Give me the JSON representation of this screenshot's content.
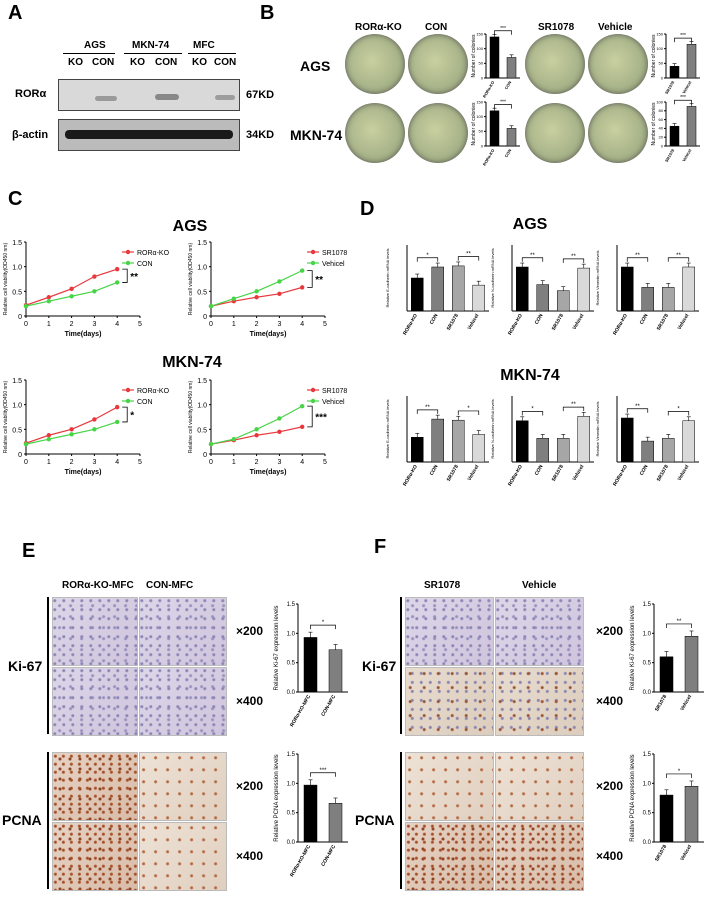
{
  "panel_letters": [
    "A",
    "B",
    "C",
    "D",
    "E",
    "F"
  ],
  "panel_a": {
    "groups": [
      "AGS",
      "MKN-74",
      "MFC"
    ],
    "lanes": [
      "KO",
      "CON",
      "KO",
      "CON",
      "KO",
      "CON"
    ],
    "rows": [
      {
        "name": "RORα",
        "size": "67KD"
      },
      {
        "name": "β-actin",
        "size": "34KD"
      }
    ]
  },
  "panel_b": {
    "col_labels_left": [
      "RORα-KO",
      "CON"
    ],
    "col_labels_right": [
      "SR1078",
      "Vehicle"
    ],
    "row_labels": [
      "AGS",
      "MKN-74"
    ],
    "ylabel": "Number of colonies",
    "sig": "***"
  },
  "panel_c": {
    "titles": [
      "AGS",
      "MKN-74"
    ],
    "xlabel": "Time(days)",
    "ylabel": "Relative cell viability(OD450 nm)",
    "y_ticks": [
      "0",
      "0.5",
      "1.0",
      "1.5"
    ],
    "x_ticks": [
      "0",
      "1",
      "2",
      "3",
      "4",
      "5"
    ]
  },
  "panel_d": {
    "titles": [
      "AGS",
      "MKN-74"
    ],
    "categories": [
      "RORα-KO",
      "CON",
      "SR1078",
      "Vehicel"
    ]
  },
  "panel_e": {
    "col_labels": [
      "RORα-KO-MFC",
      "CON-MFC"
    ],
    "row_labels": [
      "Ki-67",
      "PCNA"
    ],
    "mags": [
      "×200",
      "×400"
    ]
  },
  "panel_f": {
    "col_labels": [
      "SR1078",
      "Vehicle"
    ],
    "row_labels": [
      "Ki-67",
      "PCNA"
    ],
    "mags": [
      "×200",
      "×400"
    ]
  },
  "chart_data": [
    {
      "type": "bar",
      "panel": "B-AGS-KO",
      "categories": [
        "RORα-KO",
        "CON"
      ],
      "values": [
        140,
        70
      ],
      "ylabel": "Number of colonies",
      "ylim": [
        0,
        150
      ],
      "ticks": [
        "0",
        "50",
        "100",
        "150"
      ],
      "sig": "***"
    },
    {
      "type": "bar",
      "panel": "B-AGS-SR",
      "categories": [
        "SR1078",
        "Vehicel"
      ],
      "values": [
        40,
        115
      ],
      "ylabel": "Number of colonies",
      "ylim": [
        0,
        150
      ],
      "ticks": [
        "0",
        "50",
        "100",
        "150"
      ],
      "sig": "***"
    },
    {
      "type": "bar",
      "panel": "B-MKN-KO",
      "categories": [
        "RORα-KO",
        "CON"
      ],
      "values": [
        120,
        60
      ],
      "ylabel": "Number of colonies",
      "ylim": [
        0,
        150
      ],
      "ticks": [
        "0",
        "50",
        "100",
        "150"
      ],
      "sig": "***"
    },
    {
      "type": "bar",
      "panel": "B-MKN-SR",
      "categories": [
        "SR1078",
        "Vehicel"
      ],
      "values": [
        45,
        90
      ],
      "ylabel": "Number of colonies",
      "ylim": [
        0,
        100
      ],
      "ticks": [
        "0",
        "20",
        "40",
        "60",
        "80",
        "100"
      ],
      "sig": "***"
    },
    {
      "type": "line",
      "panel": "C-AGS-KO",
      "title": "AGS",
      "x": [
        0,
        1,
        2,
        3,
        4
      ],
      "series": [
        {
          "name": "RORα-KO",
          "values": [
            0.22,
            0.38,
            0.55,
            0.8,
            0.95
          ],
          "color": "#e8383d"
        },
        {
          "name": "CON",
          "values": [
            0.2,
            0.3,
            0.4,
            0.5,
            0.68
          ],
          "color": "#47d447"
        }
      ],
      "ylim": [
        0,
        1.5
      ],
      "xlim": [
        0,
        5
      ],
      "sig": "**"
    },
    {
      "type": "line",
      "panel": "C-AGS-SR",
      "title": "AGS",
      "x": [
        0,
        1,
        2,
        3,
        4
      ],
      "series": [
        {
          "name": "SR1078",
          "values": [
            0.2,
            0.3,
            0.38,
            0.45,
            0.58
          ],
          "color": "#e8383d"
        },
        {
          "name": "Vehicel",
          "values": [
            0.2,
            0.35,
            0.5,
            0.7,
            0.92
          ],
          "color": "#47d447"
        }
      ],
      "ylim": [
        0,
        1.5
      ],
      "xlim": [
        0,
        5
      ],
      "sig": "**"
    },
    {
      "type": "line",
      "panel": "C-MKN-KO",
      "title": "MKN-74",
      "x": [
        0,
        1,
        2,
        3,
        4
      ],
      "series": [
        {
          "name": "RORα-KO",
          "values": [
            0.22,
            0.38,
            0.5,
            0.7,
            0.95
          ],
          "color": "#e8383d"
        },
        {
          "name": "CON",
          "values": [
            0.2,
            0.3,
            0.4,
            0.5,
            0.65
          ],
          "color": "#47d447"
        }
      ],
      "ylim": [
        0,
        1.5
      ],
      "xlim": [
        0,
        5
      ],
      "sig": "*"
    },
    {
      "type": "line",
      "panel": "C-MKN-SR",
      "title": "MKN-74",
      "x": [
        0,
        1,
        2,
        3,
        4
      ],
      "series": [
        {
          "name": "SR1078",
          "values": [
            0.2,
            0.28,
            0.38,
            0.45,
            0.55
          ],
          "color": "#e8383d"
        },
        {
          "name": "Vehicel",
          "values": [
            0.2,
            0.3,
            0.5,
            0.72,
            0.97
          ],
          "color": "#47d447"
        }
      ],
      "ylim": [
        0,
        1.5
      ],
      "xlim": [
        0,
        5
      ],
      "sig": "***"
    },
    {
      "type": "bar",
      "panel": "D-AGS-E",
      "ylabel": "Relative E-cadherin mRNA levels",
      "categories": [
        "RORα-KO",
        "CON",
        "SR1078",
        "Vehicel"
      ],
      "values": [
        0.6,
        0.8,
        0.82,
        0.47
      ],
      "ylim": [
        0,
        1.2
      ],
      "sig": [
        "*",
        "**"
      ]
    },
    {
      "type": "bar",
      "panel": "D-AGS-N",
      "ylabel": "Relative N-cadherin mRNA levels",
      "categories": [
        "RORα-KO",
        "CON",
        "SR1078",
        "Vehicel"
      ],
      "values": [
        0.8,
        0.48,
        0.37,
        0.78
      ],
      "ylim": [
        0,
        1.2
      ],
      "sig": [
        "**",
        "**"
      ]
    },
    {
      "type": "bar",
      "panel": "D-AGS-V",
      "ylabel": "Relative Vimentin mRNA levels",
      "categories": [
        "RORα-KO",
        "CON",
        "SR1078",
        "Vehicel"
      ],
      "values": [
        0.8,
        0.43,
        0.43,
        0.8
      ],
      "ylim": [
        0,
        1.2
      ],
      "sig": [
        "**",
        "**"
      ]
    },
    {
      "type": "bar",
      "panel": "D-MKN-E",
      "ylabel": "Relative E-cadherin mRNA levels",
      "categories": [
        "RORα-KO",
        "CON",
        "SR1078",
        "Vehicel"
      ],
      "values": [
        0.45,
        0.78,
        0.76,
        0.5
      ],
      "ylim": [
        0,
        1.2
      ],
      "sig": [
        "**",
        "*"
      ]
    },
    {
      "type": "bar",
      "panel": "D-MKN-N",
      "ylabel": "Relative N-cadherin mRNA levels",
      "categories": [
        "RORα-KO",
        "CON",
        "SR1078",
        "Vehicel"
      ],
      "values": [
        0.75,
        0.43,
        0.43,
        0.83
      ],
      "ylim": [
        0,
        1.2
      ],
      "sig": [
        "*",
        "**"
      ]
    },
    {
      "type": "bar",
      "panel": "D-MKN-V",
      "ylabel": "Relative Vimentin mRNA levels",
      "categories": [
        "RORα-KO",
        "CON",
        "SR1078",
        "Vehicel"
      ],
      "values": [
        0.8,
        0.38,
        0.43,
        0.75
      ],
      "ylim": [
        0,
        1.2
      ],
      "sig": [
        "**",
        "*"
      ]
    },
    {
      "type": "bar",
      "panel": "E-Ki67",
      "ylabel": "Relative Ki-67 expression levels",
      "categories": [
        "RORα-KO-MFC",
        "CON-MFC"
      ],
      "values": [
        0.93,
        0.72
      ],
      "ylim": [
        0,
        1.5
      ],
      "ticks": [
        "0.0",
        "0.5",
        "1.0",
        "1.5"
      ],
      "sig": "*"
    },
    {
      "type": "bar",
      "panel": "E-PCNA",
      "ylabel": "Relative PCNA expression levels",
      "categories": [
        "RORα-KO-MFC",
        "CON-MFC"
      ],
      "values": [
        0.97,
        0.66
      ],
      "ylim": [
        0,
        1.5
      ],
      "ticks": [
        "0.0",
        "0.5",
        "1.0",
        "1.5"
      ],
      "sig": "***"
    },
    {
      "type": "bar",
      "panel": "F-Ki67",
      "ylabel": "Relative Ki-67 expression levels",
      "categories": [
        "SR1078",
        "Vehicel"
      ],
      "values": [
        0.6,
        0.95
      ],
      "ylim": [
        0,
        1.5
      ],
      "ticks": [
        "0.0",
        "0.5",
        "1.0",
        "1.5"
      ],
      "sig": "**"
    },
    {
      "type": "bar",
      "panel": "F-PCNA",
      "ylabel": "Relative PCNA expression levels",
      "categories": [
        "SR1078",
        "Vehicel"
      ],
      "values": [
        0.8,
        0.95
      ],
      "ylim": [
        0,
        1.5
      ],
      "ticks": [
        "0.0",
        "0.5",
        "1.0",
        "1.5"
      ],
      "sig": "*"
    }
  ]
}
